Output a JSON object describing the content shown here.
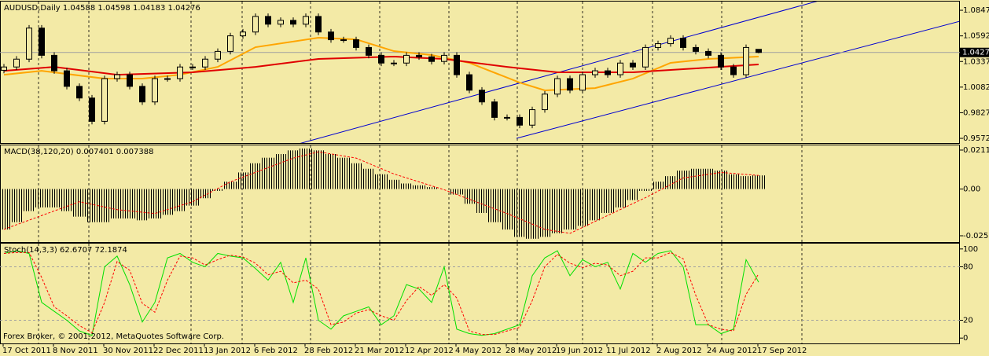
{
  "chart_data": [
    {
      "type": "candlestick",
      "title": "AUDUSD,Daily  1.04588 1.04598 1.04183 1.04276",
      "open": [
        1.025,
        1.0283,
        1.0361,
        1.067,
        1.0399,
        1.0245,
        1.009,
        0.9974,
        0.9742,
        1.0167,
        1.0206,
        1.009,
        0.9935,
        1.0167,
        1.0167,
        1.0283,
        1.0283,
        1.0361,
        1.0438,
        1.0593,
        1.0631,
        1.0786,
        1.0709,
        1.0747,
        1.0709,
        1.0786,
        1.0631,
        1.0554,
        1.0554,
        1.0477,
        1.0399,
        1.0322,
        1.0322,
        1.0399,
        1.0384,
        1.0338,
        1.0399,
        1.0206,
        1.0052,
        0.9935,
        0.9781,
        0.9781,
        0.9704,
        0.9858,
        1.0013,
        1.0167,
        1.0052,
        1.0206,
        1.0245,
        1.0206,
        1.0322,
        1.0283,
        1.0477,
        1.0515,
        1.0569,
        1.0477,
        1.0438,
        1.0399,
        1.0283,
        1.0206,
        1.04588
      ],
      "high": [
        1.0313,
        1.0391,
        1.07,
        1.07,
        1.0429,
        1.0275,
        1.012,
        1.0004,
        1.0197,
        1.0236,
        1.0236,
        1.012,
        1.0197,
        1.0197,
        1.0313,
        1.0313,
        1.0391,
        1.0468,
        1.0623,
        1.0661,
        1.0816,
        1.0816,
        1.0777,
        1.0777,
        1.0816,
        1.0816,
        1.0661,
        1.0584,
        1.0584,
        1.0507,
        1.0429,
        1.0352,
        1.0429,
        1.0429,
        1.0414,
        1.0429,
        1.0429,
        1.0236,
        1.0082,
        0.9965,
        0.9811,
        0.9811,
        0.9888,
        1.0043,
        1.0197,
        1.0197,
        1.0236,
        1.0275,
        1.0275,
        1.0352,
        1.0352,
        1.0507,
        1.0545,
        1.0599,
        1.0599,
        1.0507,
        1.0468,
        1.0429,
        1.0313,
        1.0507,
        1.04598
      ],
      "low": [
        1.022,
        1.0253,
        1.0331,
        1.0369,
        1.0215,
        1.006,
        0.9944,
        0.9712,
        0.9712,
        1.0137,
        1.006,
        0.9905,
        0.9905,
        1.0137,
        1.0137,
        1.0253,
        1.0253,
        1.0331,
        1.0408,
        1.0563,
        1.0601,
        1.0679,
        1.0679,
        1.0679,
        1.0679,
        1.0601,
        1.0524,
        1.0524,
        1.0447,
        1.0369,
        1.0292,
        1.0292,
        1.0292,
        1.0354,
        1.0308,
        1.0308,
        1.0176,
        1.0022,
        0.9905,
        0.9751,
        0.9751,
        0.9674,
        0.9674,
        0.9828,
        0.9983,
        1.0022,
        1.0022,
        1.0176,
        1.0176,
        1.0176,
        1.0253,
        1.0253,
        1.0447,
        1.0485,
        1.0447,
        1.0408,
        1.0369,
        1.0253,
        1.0176,
        1.0176,
        1.04183
      ],
      "close": [
        1.0283,
        1.0361,
        1.067,
        1.0399,
        1.0245,
        1.009,
        0.9974,
        0.9742,
        1.0167,
        1.0206,
        1.009,
        0.9935,
        1.0167,
        1.0167,
        1.0283,
        1.0283,
        1.0361,
        1.0438,
        1.0593,
        1.0631,
        1.0786,
        1.0709,
        1.0747,
        1.0709,
        1.0786,
        1.0631,
        1.0554,
        1.0554,
        1.0477,
        1.0399,
        1.0322,
        1.0322,
        1.0399,
        1.0384,
        1.0338,
        1.0399,
        1.0206,
        1.0052,
        0.9935,
        0.9781,
        0.9781,
        0.9704,
        0.9858,
        1.0013,
        1.0167,
        1.0052,
        1.0206,
        1.0245,
        1.0206,
        1.0322,
        1.0283,
        1.0477,
        1.0515,
        1.0569,
        1.0477,
        1.0438,
        1.0399,
        1.0283,
        1.0206,
        1.0477,
        1.04276
      ],
      "color_up": "#f3eaa6",
      "color_down": "#000000",
      "series": [
        {
          "color": "#ffa500",
          "x": [
            0,
            3,
            8,
            11,
            14,
            17,
            20,
            25,
            28,
            31,
            34,
            37,
            41,
            43,
            47,
            50,
            53,
            56,
            60
          ],
          "values": [
            1.0206,
            1.0245,
            1.0167,
            1.0167,
            1.0206,
            1.0284,
            1.048,
            1.0574,
            1.0558,
            1.0441,
            1.0402,
            1.0324,
            1.0128,
            1.005,
            1.0073,
            1.0167,
            1.0324,
            1.0363,
            1.0386
          ]
        },
        {
          "color": "#e00000",
          "x": [
            0,
            4,
            9,
            15,
            20,
            25,
            31,
            35,
            40,
            44,
            50,
            54,
            60
          ],
          "values": [
            1.0245,
            1.0284,
            1.0206,
            1.023,
            1.0284,
            1.0363,
            1.0386,
            1.0363,
            1.0284,
            1.023,
            1.023,
            1.0261,
            1.0308
          ]
        }
      ],
      "current_price": 1.04276,
      "ylim": [
        0.9526,
        1.0934
      ],
      "yticks": [
        0.95725,
        0.98275,
        1.00825,
        1.03375,
        1.05925,
        1.08475
      ]
    },
    {
      "type": "macd",
      "title": "MACD(38,120,20) 0.007401 0.007388",
      "values": [
        -0.022,
        -0.018,
        -0.012,
        -0.01,
        -0.01,
        -0.012,
        -0.015,
        -0.018,
        -0.018,
        -0.016,
        -0.016,
        -0.017,
        -0.016,
        -0.014,
        -0.012,
        -0.009,
        -0.005,
        -0.001,
        0.004,
        0.009,
        0.014,
        0.017,
        0.019,
        0.021,
        0.022,
        0.021,
        0.019,
        0.017,
        0.014,
        0.011,
        0.008,
        0.005,
        0.003,
        0.002,
        0.001,
        0,
        -0.003,
        -0.008,
        -0.013,
        -0.018,
        -0.022,
        -0.026,
        -0.027,
        -0.026,
        -0.024,
        -0.022,
        -0.02,
        -0.017,
        -0.013,
        -0.01,
        -0.006,
        -0.001,
        0.004,
        0.007,
        0.01,
        0.011,
        0.011,
        0.01,
        0.008,
        0.007,
        0.007401
      ],
      "color": "#000000",
      "signal": {
        "color": "#ff0000",
        "x": [
          0,
          6,
          9,
          12,
          15,
          18,
          23,
          25,
          28,
          31,
          35,
          40,
          43,
          45,
          47,
          51,
          54,
          57,
          60
        ],
        "values": [
          -0.0219,
          -0.0069,
          -0.0112,
          -0.0133,
          -0.0069,
          0.0039,
          0.0168,
          0.0202,
          0.0168,
          0.0082,
          -0.0004,
          -0.0133,
          -0.0219,
          -0.0241,
          -0.0176,
          -0.0047,
          0.006,
          0.009,
          0.007388
        ]
      },
      "ylim": [
        -0.0288,
        0.0237
      ],
      "yticks": [
        -0.02539,
        {
          "value": 0,
          "label": "0.00"
        },
        0.02115
      ]
    },
    {
      "type": "stochastic",
      "title": "Stoch(14,3,3) 62.6707 72.1874",
      "values": [
        95,
        98,
        95,
        40,
        30,
        20,
        8,
        3,
        80,
        92,
        60,
        18,
        40,
        90,
        95,
        85,
        80,
        95,
        92,
        90,
        78,
        65,
        85,
        40,
        90,
        20,
        10,
        25,
        30,
        35,
        15,
        25,
        60,
        55,
        40,
        80,
        10,
        5,
        3,
        5,
        10,
        15,
        70,
        90,
        98,
        70,
        88,
        80,
        85,
        55,
        95,
        85,
        95,
        98,
        80,
        15,
        15,
        5,
        10,
        88,
        62.6707
      ],
      "color": "#00e000",
      "signal": [
        95,
        96,
        96,
        68,
        35,
        25,
        14,
        6,
        40,
        86,
        76,
        39,
        29,
        65,
        92,
        90,
        82,
        88,
        93,
        91,
        84,
        71,
        75,
        62,
        65,
        55,
        15,
        18,
        28,
        32,
        25,
        20,
        42,
        58,
        48,
        60,
        45,
        8,
        4,
        4,
        8,
        12,
        42,
        80,
        94,
        84,
        79,
        84,
        82,
        70,
        75,
        90,
        90,
        96,
        89,
        48,
        15,
        10,
        8,
        49,
        72.1874
      ],
      "signal_color": "#ff0000",
      "levels": [
        20,
        80
      ],
      "ylim": [
        -6,
        106
      ],
      "yticks": [
        0,
        20,
        80,
        100
      ]
    }
  ],
  "x_labels": [
    "17 Oct 2011",
    "8 Nov 2011",
    "30 Nov 2011",
    "22 Dec 2011",
    "13 Jan 2012",
    "6 Feb 2012",
    "28 Feb 2012",
    "21 Mar 2012",
    "12 Apr 2012",
    "4 May 2012",
    "28 May 2012",
    "19 Jun 2012",
    "11 Jul 2012",
    "2 Aug 2012",
    "24 Aug 2012",
    "17 Sep 2012"
  ],
  "footer": "Forex Broker, © 2001-2012, MetaQuotes Software Corp."
}
